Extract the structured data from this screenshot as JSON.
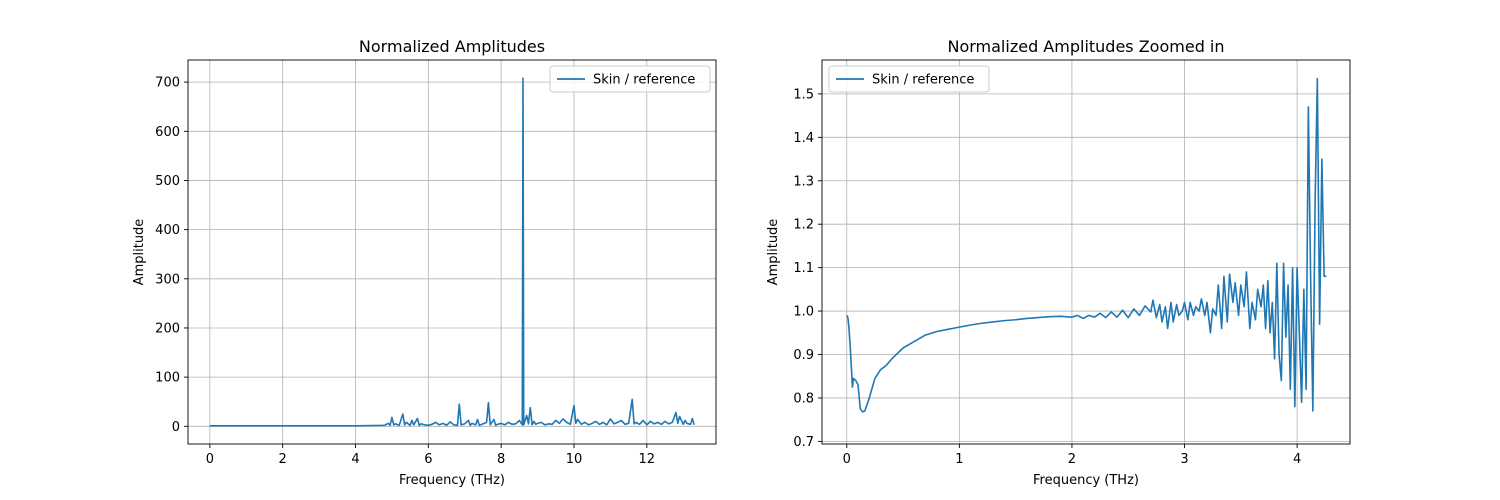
{
  "chart_data": [
    {
      "type": "line",
      "title": "Normalized Amplitudes",
      "xlabel": "Frequency (THz)",
      "ylabel": "Amplitude",
      "xlim": [
        -0.6,
        13.9
      ],
      "ylim": [
        -36,
        745
      ],
      "xticks": [
        0,
        2,
        4,
        6,
        8,
        10,
        12
      ],
      "yticks": [
        0,
        100,
        200,
        300,
        400,
        500,
        600,
        700
      ],
      "grid": true,
      "legend": "top-right",
      "series": [
        {
          "name": "Skin / reference",
          "color": "#1f77b4",
          "x": [
            0,
            1,
            2,
            3,
            4,
            4.8,
            4.9,
            4.95,
            5.0,
            5.05,
            5.1,
            5.2,
            5.3,
            5.35,
            5.4,
            5.5,
            5.55,
            5.6,
            5.7,
            5.75,
            5.8,
            5.9,
            6.0,
            6.1,
            6.2,
            6.3,
            6.4,
            6.5,
            6.6,
            6.7,
            6.8,
            6.85,
            6.9,
            7.0,
            7.1,
            7.15,
            7.2,
            7.3,
            7.35,
            7.4,
            7.5,
            7.6,
            7.65,
            7.7,
            7.8,
            7.85,
            7.9,
            8.0,
            8.1,
            8.2,
            8.3,
            8.4,
            8.5,
            8.58,
            8.6,
            8.62,
            8.7,
            8.75,
            8.8,
            8.85,
            8.9,
            8.95,
            9.0,
            9.1,
            9.2,
            9.3,
            9.4,
            9.5,
            9.6,
            9.7,
            9.8,
            9.9,
            10.0,
            10.05,
            10.1,
            10.2,
            10.3,
            10.4,
            10.5,
            10.6,
            10.7,
            10.8,
            10.9,
            11.0,
            11.1,
            11.2,
            11.3,
            11.4,
            11.5,
            11.6,
            11.65,
            11.7,
            11.8,
            11.9,
            12.0,
            12.1,
            12.2,
            12.3,
            12.4,
            12.5,
            12.6,
            12.7,
            12.8,
            12.85,
            12.9,
            13.0,
            13.05,
            13.1,
            13.2,
            13.25,
            13.3
          ],
          "y": [
            1,
            1,
            1,
            1,
            1,
            2,
            6,
            2,
            18,
            3,
            5,
            2,
            25,
            3,
            8,
            2,
            12,
            3,
            16,
            2,
            5,
            3,
            2,
            4,
            8,
            3,
            6,
            2,
            9,
            3,
            2,
            45,
            3,
            5,
            12,
            2,
            6,
            3,
            14,
            2,
            5,
            8,
            48,
            3,
            14,
            2,
            4,
            6,
            3,
            8,
            4,
            5,
            12,
            3,
            708,
            3,
            22,
            5,
            38,
            3,
            10,
            4,
            6,
            8,
            3,
            5,
            4,
            12,
            6,
            15,
            8,
            4,
            42,
            6,
            14,
            4,
            8,
            3,
            6,
            10,
            4,
            8,
            3,
            15,
            5,
            8,
            12,
            4,
            6,
            55,
            5,
            8,
            4,
            12,
            3,
            10,
            5,
            8,
            4,
            10,
            5,
            8,
            28,
            6,
            20,
            4,
            12,
            6,
            4,
            16,
            3
          ]
        }
      ]
    },
    {
      "type": "line",
      "title": "Normalized Amplitudes Zoomed in",
      "xlabel": "Frequency (THz)",
      "ylabel": "Amplitude",
      "xlim": [
        -0.22,
        4.47
      ],
      "ylim": [
        0.694,
        1.578
      ],
      "xticks": [
        0,
        1,
        2,
        3,
        4
      ],
      "yticks": [
        0.7,
        0.8,
        0.9,
        1.0,
        1.1,
        1.2,
        1.3,
        1.4,
        1.5
      ],
      "grid": true,
      "legend": "top-left",
      "series": [
        {
          "name": "Skin / reference",
          "color": "#1f77b4",
          "x": [
            0,
            0.01,
            0.02,
            0.03,
            0.04,
            0.05,
            0.06,
            0.08,
            0.1,
            0.12,
            0.14,
            0.16,
            0.2,
            0.25,
            0.3,
            0.35,
            0.4,
            0.5,
            0.6,
            0.7,
            0.8,
            0.9,
            1.0,
            1.1,
            1.2,
            1.3,
            1.4,
            1.5,
            1.6,
            1.7,
            1.8,
            1.9,
            2.0,
            2.05,
            2.1,
            2.15,
            2.2,
            2.25,
            2.3,
            2.35,
            2.4,
            2.45,
            2.5,
            2.55,
            2.6,
            2.65,
            2.7,
            2.72,
            2.75,
            2.78,
            2.8,
            2.83,
            2.85,
            2.88,
            2.9,
            2.93,
            2.95,
            2.98,
            3.0,
            3.03,
            3.05,
            3.08,
            3.1,
            3.13,
            3.15,
            3.18,
            3.2,
            3.23,
            3.25,
            3.28,
            3.3,
            3.33,
            3.35,
            3.38,
            3.4,
            3.43,
            3.45,
            3.48,
            3.5,
            3.53,
            3.55,
            3.58,
            3.6,
            3.63,
            3.65,
            3.68,
            3.7,
            3.72,
            3.74,
            3.76,
            3.78,
            3.8,
            3.82,
            3.84,
            3.86,
            3.88,
            3.9,
            3.92,
            3.94,
            3.96,
            3.98,
            4.0,
            4.02,
            4.04,
            4.06,
            4.08,
            4.1,
            4.12,
            4.14,
            4.16,
            4.18,
            4.2,
            4.22,
            4.24,
            4.26
          ],
          "y": [
            0.99,
            0.985,
            0.96,
            0.92,
            0.875,
            0.825,
            0.845,
            0.84,
            0.83,
            0.775,
            0.768,
            0.77,
            0.8,
            0.845,
            0.865,
            0.875,
            0.89,
            0.915,
            0.93,
            0.945,
            0.953,
            0.958,
            0.963,
            0.968,
            0.972,
            0.975,
            0.978,
            0.98,
            0.983,
            0.985,
            0.987,
            0.988,
            0.986,
            0.99,
            0.983,
            0.99,
            0.986,
            0.995,
            0.985,
            0.998,
            0.986,
            1.002,
            0.985,
            1.005,
            0.99,
            1.012,
            0.998,
            1.025,
            0.985,
            1.015,
            0.975,
            1.01,
            0.96,
            1.02,
            0.975,
            1.015,
            0.99,
            1.0,
            1.02,
            0.98,
            1.02,
            0.99,
            1.01,
            1.0,
            1.028,
            0.99,
            1.02,
            0.95,
            1.005,
            0.99,
            1.06,
            0.96,
            1.08,
            0.975,
            1.085,
            1.02,
            1.065,
            0.99,
            1.06,
            1.01,
            1.09,
            0.96,
            1.02,
            0.98,
            1.05,
            1.01,
            1.06,
            0.96,
            1.07,
            0.95,
            1.02,
            0.89,
            1.11,
            0.9,
            0.84,
            1.11,
            0.94,
            1.06,
            0.82,
            1.1,
            0.78,
            1.1,
            0.95,
            0.79,
            1.05,
            0.82,
            1.47,
            1.08,
            0.77,
            1.25,
            1.535,
            0.97,
            1.35,
            1.08,
            1.08
          ]
        }
      ]
    }
  ]
}
